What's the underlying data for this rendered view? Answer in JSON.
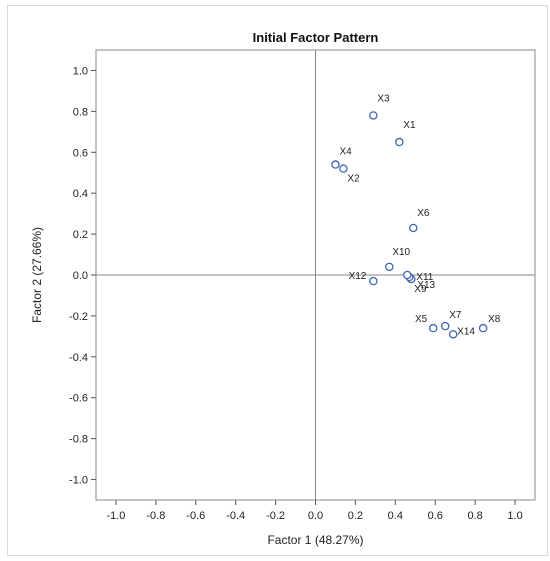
{
  "chart_data": {
    "type": "scatter",
    "title": "Initial Factor Pattern",
    "xlabel": "Factor 1 (48.27%)",
    "ylabel": "Factor 2 (27.66%)",
    "xlim": [
      -1.1,
      1.1
    ],
    "ylim": [
      -1.1,
      1.1
    ],
    "xticks": [
      "-1.0",
      "-0.8",
      "-0.6",
      "-0.4",
      "-0.2",
      "0.0",
      "0.2",
      "0.4",
      "0.6",
      "0.8",
      "1.0"
    ],
    "yticks": [
      "1.0",
      "0.8",
      "0.6",
      "0.4",
      "0.2",
      "0.0",
      "-0.2",
      "-0.4",
      "-0.6",
      "-0.8",
      "-1.0"
    ],
    "grid": false,
    "reference_lines": [
      0,
      0
    ],
    "marker_color": "#3e66b3",
    "points": [
      {
        "label": "X1",
        "x": 0.42,
        "y": 0.65
      },
      {
        "label": "X2",
        "x": 0.14,
        "y": 0.52
      },
      {
        "label": "X3",
        "x": 0.29,
        "y": 0.78
      },
      {
        "label": "X4",
        "x": 0.1,
        "y": 0.54
      },
      {
        "label": "X5",
        "x": 0.59,
        "y": -0.26
      },
      {
        "label": "X6",
        "x": 0.49,
        "y": 0.23
      },
      {
        "label": "X7",
        "x": 0.65,
        "y": -0.25
      },
      {
        "label": "X8",
        "x": 0.84,
        "y": -0.26
      },
      {
        "label": "X9",
        "x": 0.48,
        "y": -0.02
      },
      {
        "label": "X10",
        "x": 0.37,
        "y": 0.04
      },
      {
        "label": "X11",
        "x": 0.47,
        "y": -0.01
      },
      {
        "label": "X12",
        "x": 0.29,
        "y": -0.03
      },
      {
        "label": "X13",
        "x": 0.46,
        "y": 0.0
      },
      {
        "label": "X14",
        "x": 0.69,
        "y": -0.29
      }
    ]
  }
}
